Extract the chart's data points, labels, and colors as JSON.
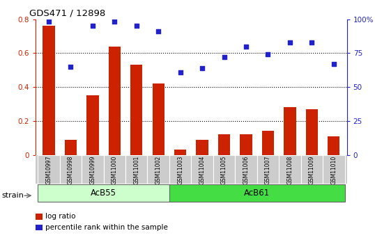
{
  "title": "GDS471 / 12898",
  "samples": [
    "GSM10997",
    "GSM10998",
    "GSM10999",
    "GSM11000",
    "GSM11001",
    "GSM11002",
    "GSM11003",
    "GSM11004",
    "GSM11005",
    "GSM11006",
    "GSM11007",
    "GSM11008",
    "GSM11009",
    "GSM11010"
  ],
  "log_ratio": [
    0.76,
    0.09,
    0.35,
    0.64,
    0.53,
    0.42,
    0.03,
    0.09,
    0.12,
    0.12,
    0.14,
    0.28,
    0.27,
    0.11
  ],
  "percentile_rank": [
    98,
    65,
    95,
    98,
    95,
    91,
    61,
    64,
    72,
    80,
    74,
    83,
    83,
    67
  ],
  "bar_color": "#cc2200",
  "dot_color": "#2222cc",
  "ylim_left": [
    0,
    0.8
  ],
  "ylim_right": [
    0,
    100
  ],
  "yticks_left": [
    0,
    0.2,
    0.4,
    0.6,
    0.8
  ],
  "yticks_right": [
    0,
    25,
    50,
    75,
    100
  ],
  "ytick_labels_left": [
    "0",
    "0.2",
    "0.4",
    "0.6",
    "0.8"
  ],
  "ytick_labels_right": [
    "0",
    "25",
    "50",
    "75",
    "100%"
  ],
  "groups": [
    {
      "label": "AcB55",
      "start": 0,
      "end": 6,
      "color": "#ccffcc"
    },
    {
      "label": "AcB61",
      "start": 6,
      "end": 14,
      "color": "#44dd44"
    }
  ],
  "sample_bg_color": "#cccccc",
  "xlabel_strain": "strain",
  "legend_bar_label": "log ratio",
  "legend_dot_label": "percentile rank within the sample",
  "tick_color_left": "#cc2200",
  "tick_color_right": "#2222cc"
}
